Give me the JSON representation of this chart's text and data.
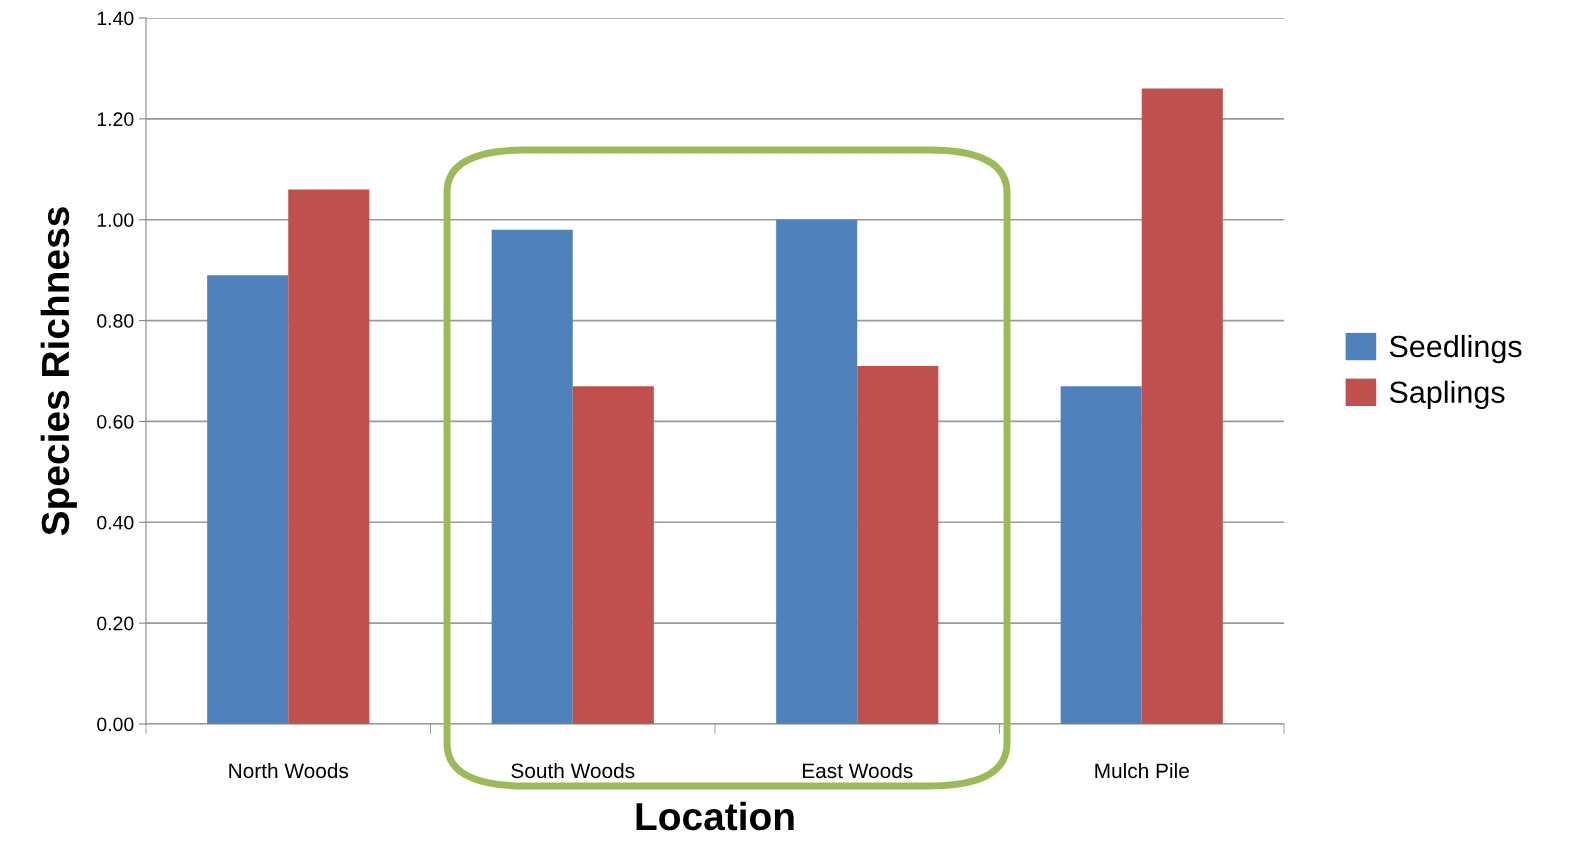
{
  "chart_data": {
    "type": "bar",
    "xlabel": "Location",
    "ylabel": "Species Richness",
    "categories": [
      "North Woods",
      "South Woods",
      "East Woods",
      "Mulch Pile"
    ],
    "series": [
      {
        "name": "Seedlings",
        "color": "#4f81bd",
        "values": [
          0.89,
          0.98,
          1.0,
          0.67
        ]
      },
      {
        "name": "Saplings",
        "color": "#c0504d",
        "values": [
          1.06,
          0.67,
          0.71,
          1.26
        ]
      }
    ],
    "ylim": [
      0,
      1.4
    ],
    "yticks": [
      {
        "value": 0,
        "label": "0.00"
      },
      {
        "value": 0.2,
        "label": "0.20"
      },
      {
        "value": 0.4,
        "label": "0.40"
      },
      {
        "value": 0.6,
        "label": "0.60"
      },
      {
        "value": 0.8,
        "label": "0.80"
      },
      {
        "value": 1.0,
        "label": "1.00"
      },
      {
        "value": 1.2,
        "label": "1.20"
      },
      {
        "value": 1.4,
        "label": "1.40"
      }
    ],
    "grid": "y",
    "legend": "right"
  }
}
